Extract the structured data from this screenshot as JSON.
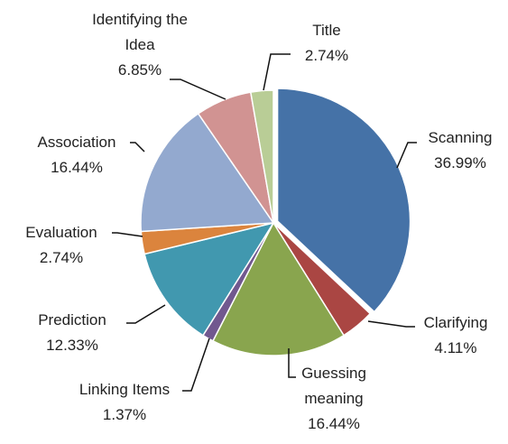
{
  "chart_data": {
    "type": "pie",
    "categories": [
      "Scanning",
      "Clarifying",
      "Guessing meaning",
      "Linking Items",
      "Prediction",
      "Evaluation",
      "Association",
      "Identifying the Idea",
      "Title"
    ],
    "values": [
      36.99,
      4.11,
      16.44,
      1.37,
      12.33,
      2.74,
      16.44,
      6.85,
      2.74
    ],
    "value_labels": [
      "36.99%",
      "4.11%",
      "16.44%",
      "1.37%",
      "12.33%",
      "2.74%",
      "16.44%",
      "6.85%",
      "2.74%"
    ],
    "colors": [
      "#4572a7",
      "#aa4643",
      "#89a54e",
      "#71588f",
      "#4198af",
      "#db843d",
      "#93a9cf",
      "#d19392",
      "#b9cd96"
    ]
  }
}
